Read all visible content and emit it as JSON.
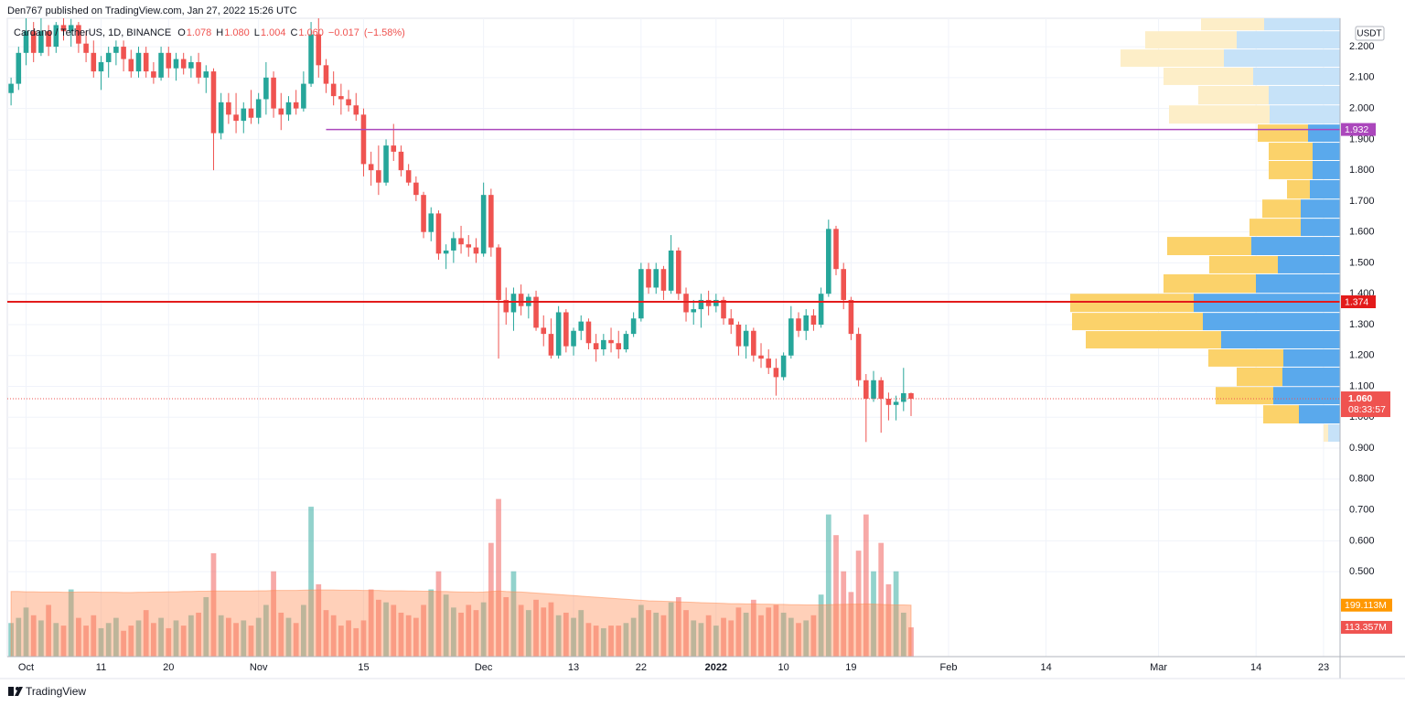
{
  "header": {
    "publisher": "Den767 published on TradingView.com, Jan 27, 2022 15:26 UTC"
  },
  "footer": {
    "brand": "TradingView"
  },
  "chart_data": {
    "type": "candlestick",
    "legend": {
      "name": "Cardano / TetherUS, 1D, BINANCE",
      "fields": [
        {
          "key": "O",
          "value": "1.078"
        },
        {
          "key": "H",
          "value": "1.080"
        },
        {
          "key": "L",
          "value": "1.004"
        },
        {
          "key": "C",
          "value": "1.060"
        }
      ],
      "change": "−0.017",
      "change_pct": "(−1.58%)"
    },
    "currency": "USDT",
    "up_color": "#26a69a",
    "down_color": "#ef5350",
    "grid": true,
    "candles": [
      [
        2.05,
        2.1,
        2.01,
        2.08
      ],
      [
        2.08,
        2.2,
        2.06,
        2.18
      ],
      [
        2.18,
        2.3,
        2.14,
        2.25
      ],
      [
        2.25,
        2.28,
        2.15,
        2.18
      ],
      [
        2.18,
        2.3,
        2.17,
        2.25
      ],
      [
        2.25,
        2.27,
        2.17,
        2.2
      ],
      [
        2.2,
        2.28,
        2.18,
        2.27
      ],
      [
        2.27,
        2.3,
        2.22,
        2.25
      ],
      [
        2.25,
        2.29,
        2.2,
        2.27
      ],
      [
        2.27,
        2.28,
        2.18,
        2.21
      ],
      [
        2.21,
        2.25,
        2.15,
        2.18
      ],
      [
        2.18,
        2.22,
        2.1,
        2.12
      ],
      [
        2.12,
        2.17,
        2.06,
        2.15
      ],
      [
        2.15,
        2.2,
        2.1,
        2.18
      ],
      [
        2.18,
        2.22,
        2.14,
        2.2
      ],
      [
        2.2,
        2.22,
        2.12,
        2.16
      ],
      [
        2.16,
        2.19,
        2.1,
        2.12
      ],
      [
        2.12,
        2.2,
        2.1,
        2.18
      ],
      [
        2.18,
        2.2,
        2.1,
        2.12
      ],
      [
        2.12,
        2.15,
        2.08,
        2.1
      ],
      [
        2.1,
        2.2,
        2.09,
        2.18
      ],
      [
        2.18,
        2.2,
        2.1,
        2.13
      ],
      [
        2.13,
        2.18,
        2.09,
        2.16
      ],
      [
        2.16,
        2.18,
        2.11,
        2.13
      ],
      [
        2.13,
        2.17,
        2.1,
        2.15
      ],
      [
        2.15,
        2.18,
        2.08,
        2.1
      ],
      [
        2.1,
        2.14,
        2.05,
        2.12
      ],
      [
        2.12,
        2.13,
        1.8,
        1.92
      ],
      [
        1.92,
        2.05,
        1.9,
        2.02
      ],
      [
        2.02,
        2.05,
        1.95,
        1.98
      ],
      [
        1.98,
        2.05,
        1.92,
        1.96
      ],
      [
        1.96,
        2.02,
        1.92,
        2.0
      ],
      [
        2.0,
        2.06,
        1.95,
        1.97
      ],
      [
        1.97,
        2.05,
        1.95,
        2.03
      ],
      [
        2.03,
        2.15,
        1.98,
        2.1
      ],
      [
        2.1,
        2.12,
        1.97,
        2.0
      ],
      [
        2.0,
        2.05,
        1.93,
        1.98
      ],
      [
        1.98,
        2.04,
        1.96,
        2.02
      ],
      [
        2.02,
        2.06,
        1.98,
        2.0
      ],
      [
        2.0,
        2.12,
        1.99,
        2.08
      ],
      [
        2.08,
        2.28,
        2.07,
        2.24
      ],
      [
        2.24,
        2.3,
        2.1,
        2.14
      ],
      [
        2.14,
        2.16,
        2.05,
        2.08
      ],
      [
        2.08,
        2.12,
        2.01,
        2.04
      ],
      [
        2.04,
        2.08,
        1.98,
        2.03
      ],
      [
        2.03,
        2.06,
        1.99,
        2.01
      ],
      [
        2.01,
        2.05,
        1.96,
        1.98
      ],
      [
        1.98,
        2.0,
        1.78,
        1.82
      ],
      [
        1.82,
        1.86,
        1.75,
        1.8
      ],
      [
        1.8,
        1.88,
        1.72,
        1.76
      ],
      [
        1.76,
        1.9,
        1.75,
        1.88
      ],
      [
        1.88,
        1.95,
        1.83,
        1.86
      ],
      [
        1.86,
        1.88,
        1.78,
        1.8
      ],
      [
        1.8,
        1.82,
        1.75,
        1.76
      ],
      [
        1.76,
        1.78,
        1.7,
        1.72
      ],
      [
        1.72,
        1.73,
        1.58,
        1.6
      ],
      [
        1.6,
        1.68,
        1.57,
        1.66
      ],
      [
        1.66,
        1.67,
        1.51,
        1.53
      ],
      [
        1.53,
        1.56,
        1.48,
        1.54
      ],
      [
        1.54,
        1.6,
        1.5,
        1.58
      ],
      [
        1.58,
        1.62,
        1.53,
        1.56
      ],
      [
        1.56,
        1.59,
        1.52,
        1.55
      ],
      [
        1.55,
        1.58,
        1.5,
        1.53
      ],
      [
        1.53,
        1.76,
        1.52,
        1.72
      ],
      [
        1.72,
        1.74,
        1.52,
        1.55
      ],
      [
        1.55,
        1.56,
        1.19,
        1.38
      ],
      [
        1.38,
        1.42,
        1.3,
        1.34
      ],
      [
        1.34,
        1.42,
        1.28,
        1.4
      ],
      [
        1.4,
        1.43,
        1.33,
        1.36
      ],
      [
        1.36,
        1.4,
        1.32,
        1.39
      ],
      [
        1.39,
        1.41,
        1.28,
        1.29
      ],
      [
        1.29,
        1.33,
        1.23,
        1.27
      ],
      [
        1.27,
        1.32,
        1.19,
        1.2
      ],
      [
        1.2,
        1.36,
        1.19,
        1.34
      ],
      [
        1.34,
        1.35,
        1.21,
        1.23
      ],
      [
        1.23,
        1.29,
        1.2,
        1.28
      ],
      [
        1.28,
        1.33,
        1.25,
        1.31
      ],
      [
        1.31,
        1.32,
        1.22,
        1.24
      ],
      [
        1.24,
        1.27,
        1.18,
        1.22
      ],
      [
        1.22,
        1.27,
        1.2,
        1.25
      ],
      [
        1.25,
        1.29,
        1.21,
        1.24
      ],
      [
        1.24,
        1.28,
        1.19,
        1.22
      ],
      [
        1.22,
        1.28,
        1.21,
        1.27
      ],
      [
        1.27,
        1.34,
        1.26,
        1.32
      ],
      [
        1.32,
        1.5,
        1.31,
        1.48
      ],
      [
        1.48,
        1.5,
        1.4,
        1.42
      ],
      [
        1.42,
        1.5,
        1.4,
        1.48
      ],
      [
        1.48,
        1.49,
        1.38,
        1.41
      ],
      [
        1.41,
        1.59,
        1.4,
        1.54
      ],
      [
        1.54,
        1.55,
        1.38,
        1.4
      ],
      [
        1.4,
        1.42,
        1.31,
        1.34
      ],
      [
        1.34,
        1.38,
        1.3,
        1.35
      ],
      [
        1.35,
        1.4,
        1.29,
        1.38
      ],
      [
        1.38,
        1.41,
        1.33,
        1.36
      ],
      [
        1.36,
        1.4,
        1.34,
        1.38
      ],
      [
        1.38,
        1.39,
        1.3,
        1.32
      ],
      [
        1.32,
        1.35,
        1.27,
        1.3
      ],
      [
        1.3,
        1.31,
        1.2,
        1.23
      ],
      [
        1.23,
        1.3,
        1.19,
        1.28
      ],
      [
        1.28,
        1.29,
        1.18,
        1.2
      ],
      [
        1.2,
        1.24,
        1.16,
        1.19
      ],
      [
        1.19,
        1.22,
        1.14,
        1.16
      ],
      [
        1.16,
        1.19,
        1.07,
        1.13
      ],
      [
        1.13,
        1.21,
        1.12,
        1.2
      ],
      [
        1.2,
        1.36,
        1.19,
        1.32
      ],
      [
        1.32,
        1.34,
        1.26,
        1.28
      ],
      [
        1.28,
        1.35,
        1.25,
        1.33
      ],
      [
        1.33,
        1.35,
        1.28,
        1.3
      ],
      [
        1.3,
        1.42,
        1.29,
        1.4
      ],
      [
        1.4,
        1.64,
        1.39,
        1.61
      ],
      [
        1.61,
        1.62,
        1.46,
        1.48
      ],
      [
        1.48,
        1.5,
        1.35,
        1.38
      ],
      [
        1.38,
        1.39,
        1.25,
        1.27
      ],
      [
        1.27,
        1.29,
        1.1,
        1.12
      ],
      [
        1.12,
        1.14,
        0.92,
        1.06
      ],
      [
        1.06,
        1.15,
        1.05,
        1.12
      ],
      [
        1.12,
        1.13,
        0.95,
        1.06
      ],
      [
        1.06,
        1.08,
        0.99,
        1.04
      ],
      [
        1.04,
        1.07,
        0.99,
        1.05
      ],
      [
        1.05,
        1.16,
        1.02,
        1.078
      ],
      [
        1.078,
        1.08,
        1.004,
        1.06
      ]
    ],
    "xlim": [
      -0.5,
      177.2
    ],
    "xticks": [
      {
        "value": 2,
        "label": "Oct"
      },
      {
        "value": 12,
        "label": "11"
      },
      {
        "value": 21,
        "label": "20"
      },
      {
        "value": 33,
        "label": "Nov"
      },
      {
        "value": 47,
        "label": "15"
      },
      {
        "value": 63,
        "label": "Dec"
      },
      {
        "value": 75,
        "label": "13"
      },
      {
        "value": 84,
        "label": "22"
      },
      {
        "value": 94,
        "label": "2022"
      },
      {
        "value": 103,
        "label": "10"
      },
      {
        "value": 112,
        "label": "19"
      },
      {
        "value": 125,
        "label": "Feb"
      },
      {
        "value": 138,
        "label": "14"
      },
      {
        "value": 153,
        "label": "Mar"
      },
      {
        "value": 166,
        "label": "14"
      },
      {
        "value": 175,
        "label": "23"
      }
    ],
    "ylim": [
      0.225,
      2.292
    ],
    "yticks": [
      {
        "value": 0.5,
        "label": "0.500"
      },
      {
        "value": 0.6,
        "label": "0.600"
      },
      {
        "value": 0.7,
        "label": "0.700"
      },
      {
        "value": 0.8,
        "label": "0.800"
      },
      {
        "value": 0.9,
        "label": "0.900"
      },
      {
        "value": 1.0,
        "label": "1.000"
      },
      {
        "value": 1.1,
        "label": "1.100"
      },
      {
        "value": 1.2,
        "label": "1.200"
      },
      {
        "value": 1.3,
        "label": "1.300"
      },
      {
        "value": 1.4,
        "label": "1.400"
      },
      {
        "value": 1.5,
        "label": "1.500"
      },
      {
        "value": 1.6,
        "label": "1.600"
      },
      {
        "value": 1.7,
        "label": "1.700"
      },
      {
        "value": 1.8,
        "label": "1.800"
      },
      {
        "value": 1.9,
        "label": "1.900"
      },
      {
        "value": 2.0,
        "label": "2.000"
      },
      {
        "value": 2.1,
        "label": "2.100"
      },
      {
        "value": 2.2,
        "label": "2.200"
      }
    ],
    "lines": [
      {
        "price": 1.932,
        "start": 42,
        "color": "#ab47bc"
      },
      {
        "price": 1.374,
        "start": -0.5,
        "color": "#e31b1b"
      }
    ],
    "last_price": {
      "value": 1.06,
      "label": "1.060",
      "countdown": "08:33:57"
    },
    "volume": {
      "ylim": [
        0,
        2470
      ],
      "values": [
        130,
        150,
        190,
        160,
        140,
        200,
        130,
        120,
        260,
        150,
        120,
        160,
        110,
        130,
        150,
        100,
        120,
        140,
        180,
        130,
        150,
        110,
        140,
        120,
        160,
        170,
        230,
        400,
        160,
        150,
        130,
        140,
        120,
        150,
        200,
        330,
        170,
        150,
        130,
        200,
        580,
        280,
        180,
        160,
        120,
        140,
        110,
        140,
        260,
        220,
        210,
        200,
        170,
        160,
        150,
        200,
        260,
        330,
        240,
        190,
        170,
        200,
        180,
        210,
        440,
        610,
        230,
        330,
        200,
        180,
        220,
        190,
        210,
        160,
        170,
        150,
        180,
        130,
        120,
        110,
        120,
        120,
        130,
        150,
        200,
        180,
        170,
        160,
        210,
        230,
        180,
        140,
        130,
        160,
        120,
        150,
        140,
        190,
        170,
        220,
        160,
        190,
        200,
        170,
        150,
        130,
        140,
        160,
        240,
        550,
        470,
        330,
        250,
        410,
        550,
        330,
        440,
        280,
        330,
        170,
        113.357
      ],
      "value_label": "113.357M",
      "ma": [
        252,
        252,
        251,
        251,
        250,
        250,
        250,
        249,
        249,
        250,
        250,
        250,
        249,
        249,
        249,
        248,
        248,
        249,
        249,
        250,
        250,
        251,
        251,
        252,
        252,
        253,
        253,
        254,
        254,
        254,
        254,
        254,
        254,
        255,
        255,
        256,
        256,
        256,
        256,
        257,
        258,
        258,
        258,
        258,
        257,
        257,
        257,
        256,
        256,
        256,
        255,
        255,
        255,
        254,
        254,
        253,
        253,
        252,
        252,
        251,
        250,
        250,
        249,
        250,
        252,
        254,
        252,
        251,
        250,
        248,
        246,
        244,
        242,
        240,
        238,
        236,
        234,
        232,
        230,
        228,
        226,
        224,
        222,
        220,
        218,
        216,
        215,
        214,
        213,
        212,
        211,
        210,
        209,
        208,
        207,
        206,
        205,
        205,
        204,
        204,
        203,
        203,
        202,
        202,
        201,
        201,
        200,
        200,
        200,
        201,
        202,
        202,
        203,
        203,
        204,
        203,
        202,
        201,
        200,
        200,
        199.113
      ],
      "ma_label": "199.113M",
      "ma_color": "#ff8a50"
    },
    "profile": {
      "up_color": "#5aa9ec",
      "down_color": "#fbd26a",
      "up_color_light": "#c6e2f8",
      "down_color_light": "#fdeec8",
      "rows": [
        [
          2.253,
          2.314,
          83,
          69,
          false
        ],
        [
          2.194,
          2.253,
          113,
          100,
          false
        ],
        [
          2.135,
          2.194,
          127,
          113,
          false
        ],
        [
          2.076,
          2.135,
          95,
          98,
          false
        ],
        [
          2.013,
          2.076,
          78,
          77,
          false
        ],
        [
          1.951,
          2.013,
          77,
          110,
          false
        ],
        [
          1.892,
          1.951,
          35,
          55,
          true
        ],
        [
          1.833,
          1.892,
          30,
          48,
          true
        ],
        [
          1.771,
          1.833,
          30,
          48,
          true
        ],
        [
          1.708,
          1.771,
          33,
          25,
          true
        ],
        [
          1.646,
          1.708,
          43,
          42,
          true
        ],
        [
          1.587,
          1.646,
          43,
          56,
          true
        ],
        [
          1.525,
          1.587,
          97,
          92,
          true
        ],
        [
          1.466,
          1.525,
          68,
          75,
          true
        ],
        [
          1.403,
          1.466,
          92,
          101,
          true
        ],
        [
          1.341,
          1.403,
          160,
          135,
          true
        ],
        [
          1.282,
          1.341,
          150,
          143,
          true
        ],
        [
          1.223,
          1.282,
          130,
          148,
          true
        ],
        [
          1.164,
          1.223,
          62,
          82,
          true
        ],
        [
          1.101,
          1.164,
          63,
          50,
          true
        ],
        [
          1.042,
          1.101,
          73,
          63,
          true
        ],
        [
          0.98,
          1.042,
          45,
          39,
          true
        ],
        [
          0.921,
          0.98,
          13,
          5,
          false
        ]
      ]
    }
  }
}
